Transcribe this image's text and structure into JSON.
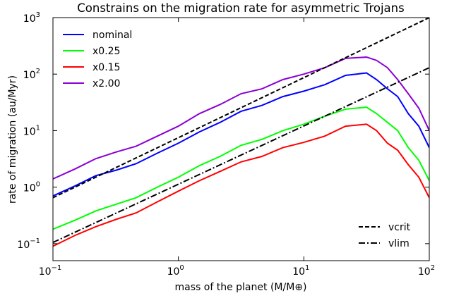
{
  "chart_data": {
    "type": "line",
    "title": "Constrains on the migration rate for asymmetric Trojans",
    "x_label": "mass of the planet (M/M⊕)",
    "y_label": "rate of migration (au/Myr)",
    "x_scale": "log",
    "y_scale": "log",
    "xlim": [
      0.1,
      100
    ],
    "ylim": [
      0.05,
      1000
    ],
    "xticks": [
      {
        "value": 0.1,
        "label": "10",
        "exponent": "−1"
      },
      {
        "value": 1,
        "label": "10",
        "exponent": "0"
      },
      {
        "value": 10,
        "label": "10",
        "exponent": "1"
      },
      {
        "value": 100,
        "label": "10",
        "exponent": "2"
      }
    ],
    "yticks": [
      {
        "value": 0.1,
        "label": "10",
        "exponent": "−1"
      },
      {
        "value": 1,
        "label": "10",
        "exponent": "0"
      },
      {
        "value": 10,
        "label": "10",
        "exponent": "1"
      },
      {
        "value": 100,
        "label": "10",
        "exponent": "2"
      },
      {
        "value": 1000,
        "label": "10",
        "exponent": "3"
      }
    ],
    "series": [
      {
        "name": "nominal",
        "color": "#0000ff",
        "dash": "solid",
        "legend": "upper left",
        "x": [
          0.1,
          0.15,
          0.22,
          0.32,
          0.46,
          0.68,
          1.0,
          1.47,
          2.15,
          3.16,
          4.64,
          6.8,
          10,
          14.7,
          21.5,
          31.6,
          38,
          46.4,
          56,
          68,
          82.5,
          100
        ],
        "values": [
          0.7,
          1.05,
          1.6,
          2.0,
          2.6,
          4,
          6,
          9.5,
          14,
          22,
          28,
          40,
          50,
          65,
          95,
          105,
          80,
          55,
          40,
          20,
          12,
          5
        ]
      },
      {
        "name": "x0.25",
        "color": "#00ff00",
        "dash": "solid",
        "legend": "upper left",
        "x": [
          0.1,
          0.15,
          0.22,
          0.32,
          0.46,
          0.68,
          1.0,
          1.47,
          2.15,
          3.16,
          4.64,
          6.8,
          10,
          14.7,
          21.5,
          31.6,
          38,
          46.4,
          56,
          68,
          82.5,
          100
        ],
        "values": [
          0.18,
          0.26,
          0.38,
          0.5,
          0.65,
          1.0,
          1.5,
          2.4,
          3.5,
          5.5,
          7,
          10,
          13,
          18,
          24,
          26,
          20,
          14,
          10,
          5,
          3,
          1.3
        ]
      },
      {
        "name": "x0.15",
        "color": "#ff0000",
        "dash": "solid",
        "legend": "upper left",
        "x": [
          0.1,
          0.15,
          0.22,
          0.32,
          0.46,
          0.68,
          1.0,
          1.47,
          2.15,
          3.16,
          4.64,
          6.8,
          10,
          14.7,
          21.5,
          31.6,
          38,
          46.4,
          56,
          68,
          82.5,
          100
        ],
        "values": [
          0.09,
          0.14,
          0.2,
          0.27,
          0.35,
          0.55,
          0.85,
          1.3,
          1.9,
          2.8,
          3.5,
          5,
          6.2,
          8,
          12,
          13,
          10,
          6,
          4.5,
          2.5,
          1.5,
          0.65
        ]
      },
      {
        "name": "x2.00",
        "color": "#8b00d4",
        "dash": "solid",
        "legend": "upper left",
        "x": [
          0.1,
          0.15,
          0.22,
          0.32,
          0.46,
          0.68,
          1.0,
          1.47,
          2.15,
          3.16,
          4.64,
          6.8,
          10,
          14.7,
          21.5,
          31.6,
          38,
          46.4,
          56,
          68,
          82.5,
          100
        ],
        "values": [
          1.4,
          2.1,
          3.2,
          4.2,
          5.3,
          8,
          12,
          20,
          29,
          45,
          55,
          80,
          100,
          130,
          190,
          200,
          175,
          130,
          80,
          45,
          25,
          10
        ]
      },
      {
        "name": "vcrit",
        "color": "#000000",
        "dash": "dashed",
        "legend": "lower right",
        "x": [
          0.1,
          100
        ],
        "values": [
          0.65,
          1000
        ]
      },
      {
        "name": "vlim",
        "color": "#000000",
        "dash": "dashdot",
        "legend": "lower right",
        "x": [
          0.1,
          100
        ],
        "values": [
          0.105,
          130
        ]
      }
    ]
  }
}
